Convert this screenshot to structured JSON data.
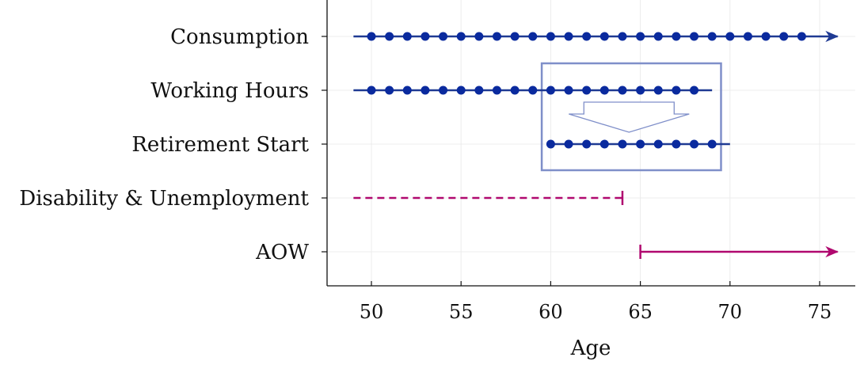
{
  "chart_data": {
    "type": "line",
    "xlabel": "Age",
    "xlim": [
      48.8,
      77
    ],
    "xticks": [
      50,
      55,
      60,
      65,
      70,
      75
    ],
    "categories": [
      "Consumption",
      "Working Hours",
      "Retirement Start",
      "Disability & Unemployment",
      "AOW"
    ],
    "grid": true,
    "colors": {
      "primary": "#1f3a93",
      "marker": "#0a2a9e",
      "accent": "#b0086f",
      "box": "#7f8fc9"
    },
    "series": [
      {
        "category": "Consumption",
        "line_start": 49,
        "line_end": 76,
        "end_style": "arrow",
        "dash": "solid",
        "color": "#1f3a93",
        "markers": [
          50,
          51,
          52,
          53,
          54,
          55,
          56,
          57,
          58,
          59,
          60,
          61,
          62,
          63,
          64,
          65,
          66,
          67,
          68,
          69,
          70,
          71,
          72,
          73,
          74
        ]
      },
      {
        "category": "Working Hours",
        "line_start": 49,
        "line_end": 69,
        "end_style": "none",
        "dash": "solid",
        "color": "#1f3a93",
        "markers": [
          50,
          51,
          52,
          53,
          54,
          55,
          56,
          57,
          58,
          59,
          60,
          61,
          62,
          63,
          64,
          65,
          66,
          67,
          68
        ]
      },
      {
        "category": "Retirement Start",
        "line_start": 60,
        "line_end": 70,
        "end_style": "none",
        "dash": "solid",
        "color": "#1f3a93",
        "markers": [
          60,
          61,
          62,
          63,
          64,
          65,
          66,
          67,
          68,
          69
        ]
      },
      {
        "category": "Disability & Unemployment",
        "line_start": 49,
        "line_end": 64,
        "end_style": "bar",
        "dash": "dashed",
        "color": "#b0086f",
        "markers": []
      },
      {
        "category": "AOW",
        "line_start": 65,
        "line_end": 76,
        "start_style": "bar",
        "end_style": "arrow",
        "dash": "solid",
        "color": "#b0086f",
        "markers": []
      }
    ],
    "annotation": {
      "type": "box-with-down-arrow",
      "x_range": [
        59.5,
        69.5
      ],
      "rows": [
        "Working Hours",
        "Retirement Start"
      ]
    }
  }
}
